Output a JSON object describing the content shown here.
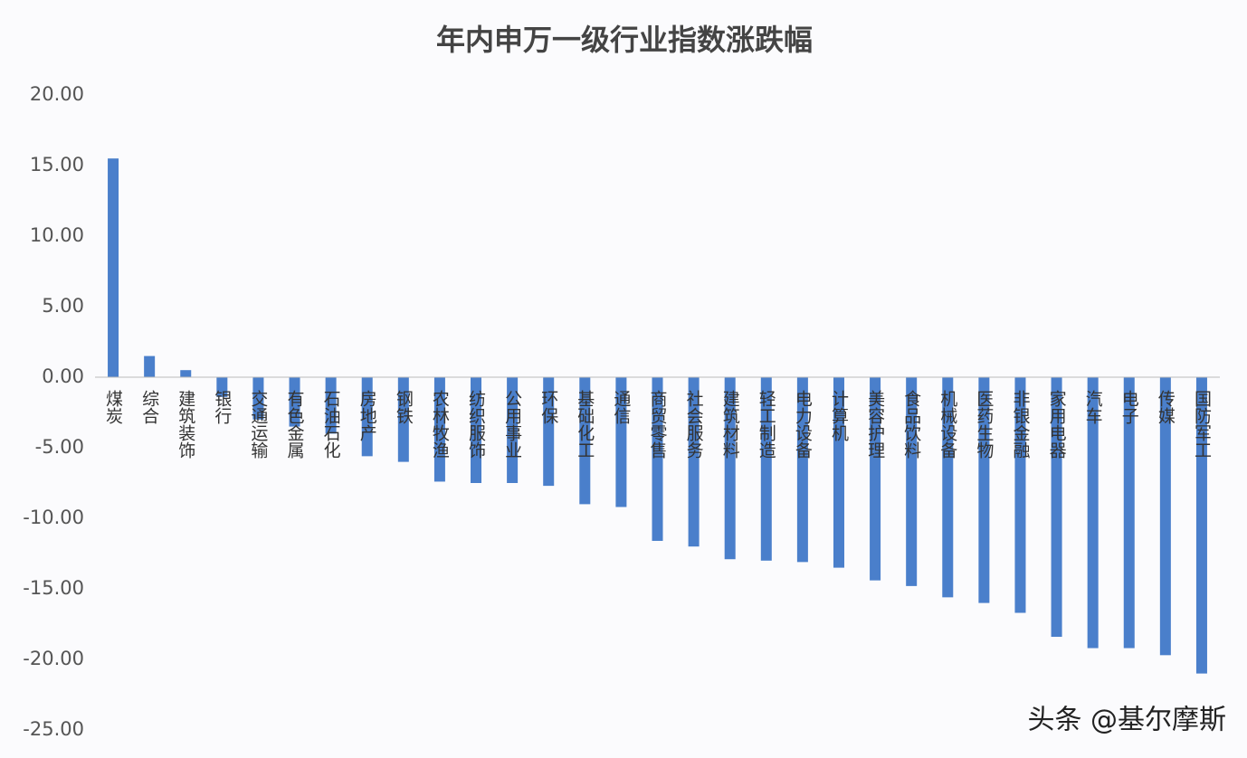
{
  "chart_data": {
    "type": "bar",
    "title": "年内申万一级行业指数涨跌幅",
    "categories": [
      "煤炭",
      "综合",
      "建筑装饰",
      "银行",
      "交通运输",
      "有色金属",
      "石油石化",
      "房地产",
      "钢铁",
      "农林牧渔",
      "纺织服饰",
      "公用事业",
      "环保",
      "基础化工",
      "通信",
      "商贸零售",
      "社会服务",
      "建筑材料",
      "轻工制造",
      "电力设备",
      "计算机",
      "美容护理",
      "食品饮料",
      "机械设备",
      "医药生物",
      "非银金融",
      "家用电器",
      "汽车",
      "电子",
      "传媒",
      "国防军工"
    ],
    "values": [
      15.5,
      1.5,
      0.5,
      -1.4,
      -3.0,
      -3.5,
      -4.0,
      -5.6,
      -6.0,
      -7.4,
      -7.5,
      -7.5,
      -7.7,
      -9.0,
      -9.2,
      -11.6,
      -12.0,
      -12.9,
      -13.0,
      -13.1,
      -13.5,
      -14.4,
      -14.8,
      -15.6,
      -16.0,
      -16.7,
      -18.4,
      -19.2,
      -19.2,
      -19.7,
      -21.0
    ],
    "color": "#4a7fcb",
    "ylim": [
      -25,
      20
    ],
    "yticks": [
      {
        "value": 20,
        "label": "20.00"
      },
      {
        "value": 15,
        "label": "15.00"
      },
      {
        "value": 10,
        "label": "10.00"
      },
      {
        "value": 5,
        "label": "5.00"
      },
      {
        "value": 0,
        "label": "0.00"
      },
      {
        "value": -5,
        "label": "-5.00"
      },
      {
        "value": -10,
        "label": "-10.00"
      },
      {
        "value": -15,
        "label": "-15.00"
      },
      {
        "value": -20,
        "label": "-20.00"
      },
      {
        "value": -25,
        "label": "-25.00"
      }
    ],
    "grid": false,
    "watermark": "头条 @基尔摩斯"
  }
}
